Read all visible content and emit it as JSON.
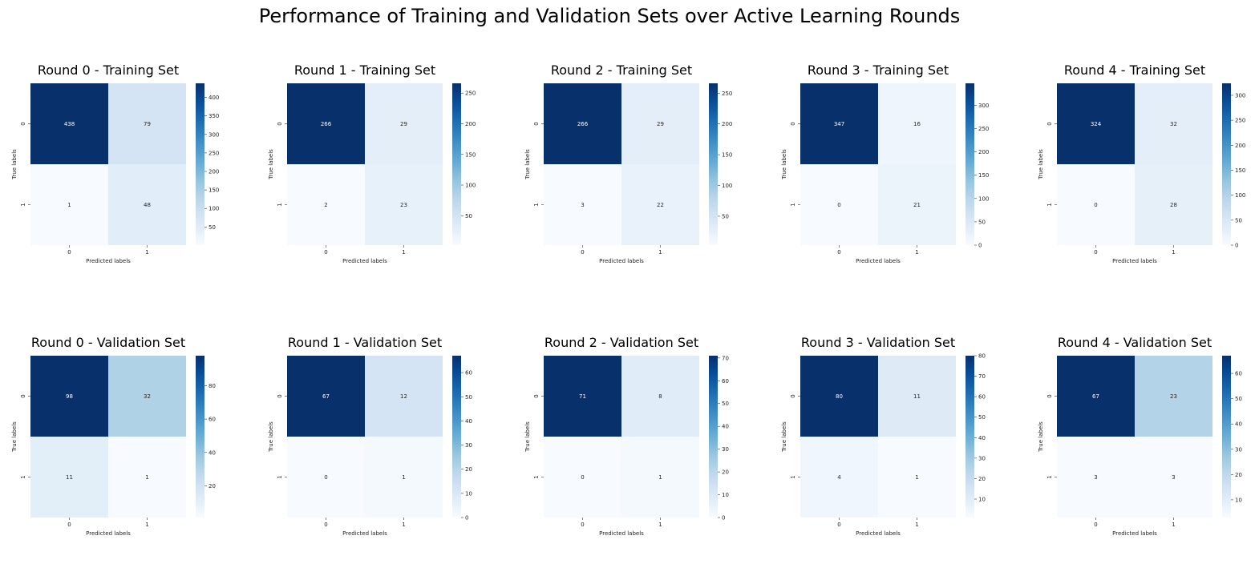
{
  "figure_title": "Performance of Training and Validation Sets over Active Learning Rounds",
  "chart_data": [
    {
      "type": "heatmap",
      "title": "Round 0 - Training Set",
      "xlabel": "Predicted labels",
      "ylabel": "True labels",
      "x_tick_labels": [
        "0",
        "1"
      ],
      "y_tick_labels": [
        "0",
        "1"
      ],
      "values": [
        [
          438,
          79
        ],
        [
          1,
          48
        ]
      ],
      "colorbar": {
        "cmap": "Blues",
        "range": [
          1,
          438
        ],
        "ticks": [
          50,
          100,
          150,
          200,
          250,
          300,
          350,
          400
        ]
      }
    },
    {
      "type": "heatmap",
      "title": "Round 1 - Training Set",
      "xlabel": "Predicted labels",
      "ylabel": "True labels",
      "x_tick_labels": [
        "0",
        "1"
      ],
      "y_tick_labels": [
        "0",
        "1"
      ],
      "values": [
        [
          266,
          29
        ],
        [
          2,
          23
        ]
      ],
      "colorbar": {
        "cmap": "Blues",
        "range": [
          2,
          266
        ],
        "ticks": [
          50,
          100,
          150,
          200,
          250
        ]
      }
    },
    {
      "type": "heatmap",
      "title": "Round 2 - Training Set",
      "xlabel": "Predicted labels",
      "ylabel": "True labels",
      "x_tick_labels": [
        "0",
        "1"
      ],
      "y_tick_labels": [
        "0",
        "1"
      ],
      "values": [
        [
          266,
          29
        ],
        [
          3,
          22
        ]
      ],
      "colorbar": {
        "cmap": "Blues",
        "range": [
          3,
          266
        ],
        "ticks": [
          50,
          100,
          150,
          200,
          250
        ]
      }
    },
    {
      "type": "heatmap",
      "title": "Round 3 - Training Set",
      "xlabel": "Predicted labels",
      "ylabel": "True labels",
      "x_tick_labels": [
        "0",
        "1"
      ],
      "y_tick_labels": [
        "0",
        "1"
      ],
      "values": [
        [
          347,
          16
        ],
        [
          0,
          21
        ]
      ],
      "colorbar": {
        "cmap": "Blues",
        "range": [
          0,
          347
        ],
        "ticks": [
          0,
          50,
          100,
          150,
          200,
          250,
          300
        ]
      }
    },
    {
      "type": "heatmap",
      "title": "Round 4 - Training Set",
      "xlabel": "Predicted labels",
      "ylabel": "True labels",
      "x_tick_labels": [
        "0",
        "1"
      ],
      "y_tick_labels": [
        "0",
        "1"
      ],
      "values": [
        [
          324,
          32
        ],
        [
          0,
          28
        ]
      ],
      "colorbar": {
        "cmap": "Blues",
        "range": [
          0,
          324
        ],
        "ticks": [
          0,
          50,
          100,
          150,
          200,
          250,
          300
        ]
      }
    },
    {
      "type": "heatmap",
      "title": "Round 0 - Validation Set",
      "xlabel": "Predicted labels",
      "ylabel": "True labels",
      "x_tick_labels": [
        "0",
        "1"
      ],
      "y_tick_labels": [
        "0",
        "1"
      ],
      "values": [
        [
          98,
          32
        ],
        [
          11,
          1
        ]
      ],
      "colorbar": {
        "cmap": "Blues",
        "range": [
          1,
          98
        ],
        "ticks": [
          20,
          40,
          60,
          80
        ]
      }
    },
    {
      "type": "heatmap",
      "title": "Round 1 - Validation Set",
      "xlabel": "Predicted labels",
      "ylabel": "True labels",
      "x_tick_labels": [
        "0",
        "1"
      ],
      "y_tick_labels": [
        "0",
        "1"
      ],
      "values": [
        [
          67,
          12
        ],
        [
          0,
          1
        ]
      ],
      "colorbar": {
        "cmap": "Blues",
        "range": [
          0,
          67
        ],
        "ticks": [
          0,
          10,
          20,
          30,
          40,
          50,
          60
        ]
      }
    },
    {
      "type": "heatmap",
      "title": "Round 2 - Validation Set",
      "xlabel": "Predicted labels",
      "ylabel": "True labels",
      "x_tick_labels": [
        "0",
        "1"
      ],
      "y_tick_labels": [
        "0",
        "1"
      ],
      "values": [
        [
          71,
          8
        ],
        [
          0,
          1
        ]
      ],
      "colorbar": {
        "cmap": "Blues",
        "range": [
          0,
          71
        ],
        "ticks": [
          0,
          10,
          20,
          30,
          40,
          50,
          60,
          70
        ]
      }
    },
    {
      "type": "heatmap",
      "title": "Round 3 - Validation Set",
      "xlabel": "Predicted labels",
      "ylabel": "True labels",
      "x_tick_labels": [
        "0",
        "1"
      ],
      "y_tick_labels": [
        "0",
        "1"
      ],
      "values": [
        [
          80,
          11
        ],
        [
          4,
          1
        ]
      ],
      "colorbar": {
        "cmap": "Blues",
        "range": [
          1,
          80
        ],
        "ticks": [
          10,
          20,
          30,
          40,
          50,
          60,
          70,
          80
        ]
      }
    },
    {
      "type": "heatmap",
      "title": "Round 4 - Validation Set",
      "xlabel": "Predicted labels",
      "ylabel": "True labels",
      "x_tick_labels": [
        "0",
        "1"
      ],
      "y_tick_labels": [
        "0",
        "1"
      ],
      "values": [
        [
          67,
          23
        ],
        [
          3,
          3
        ]
      ],
      "colorbar": {
        "cmap": "Blues",
        "range": [
          3,
          67
        ],
        "ticks": [
          10,
          20,
          30,
          40,
          50,
          60
        ]
      }
    }
  ]
}
